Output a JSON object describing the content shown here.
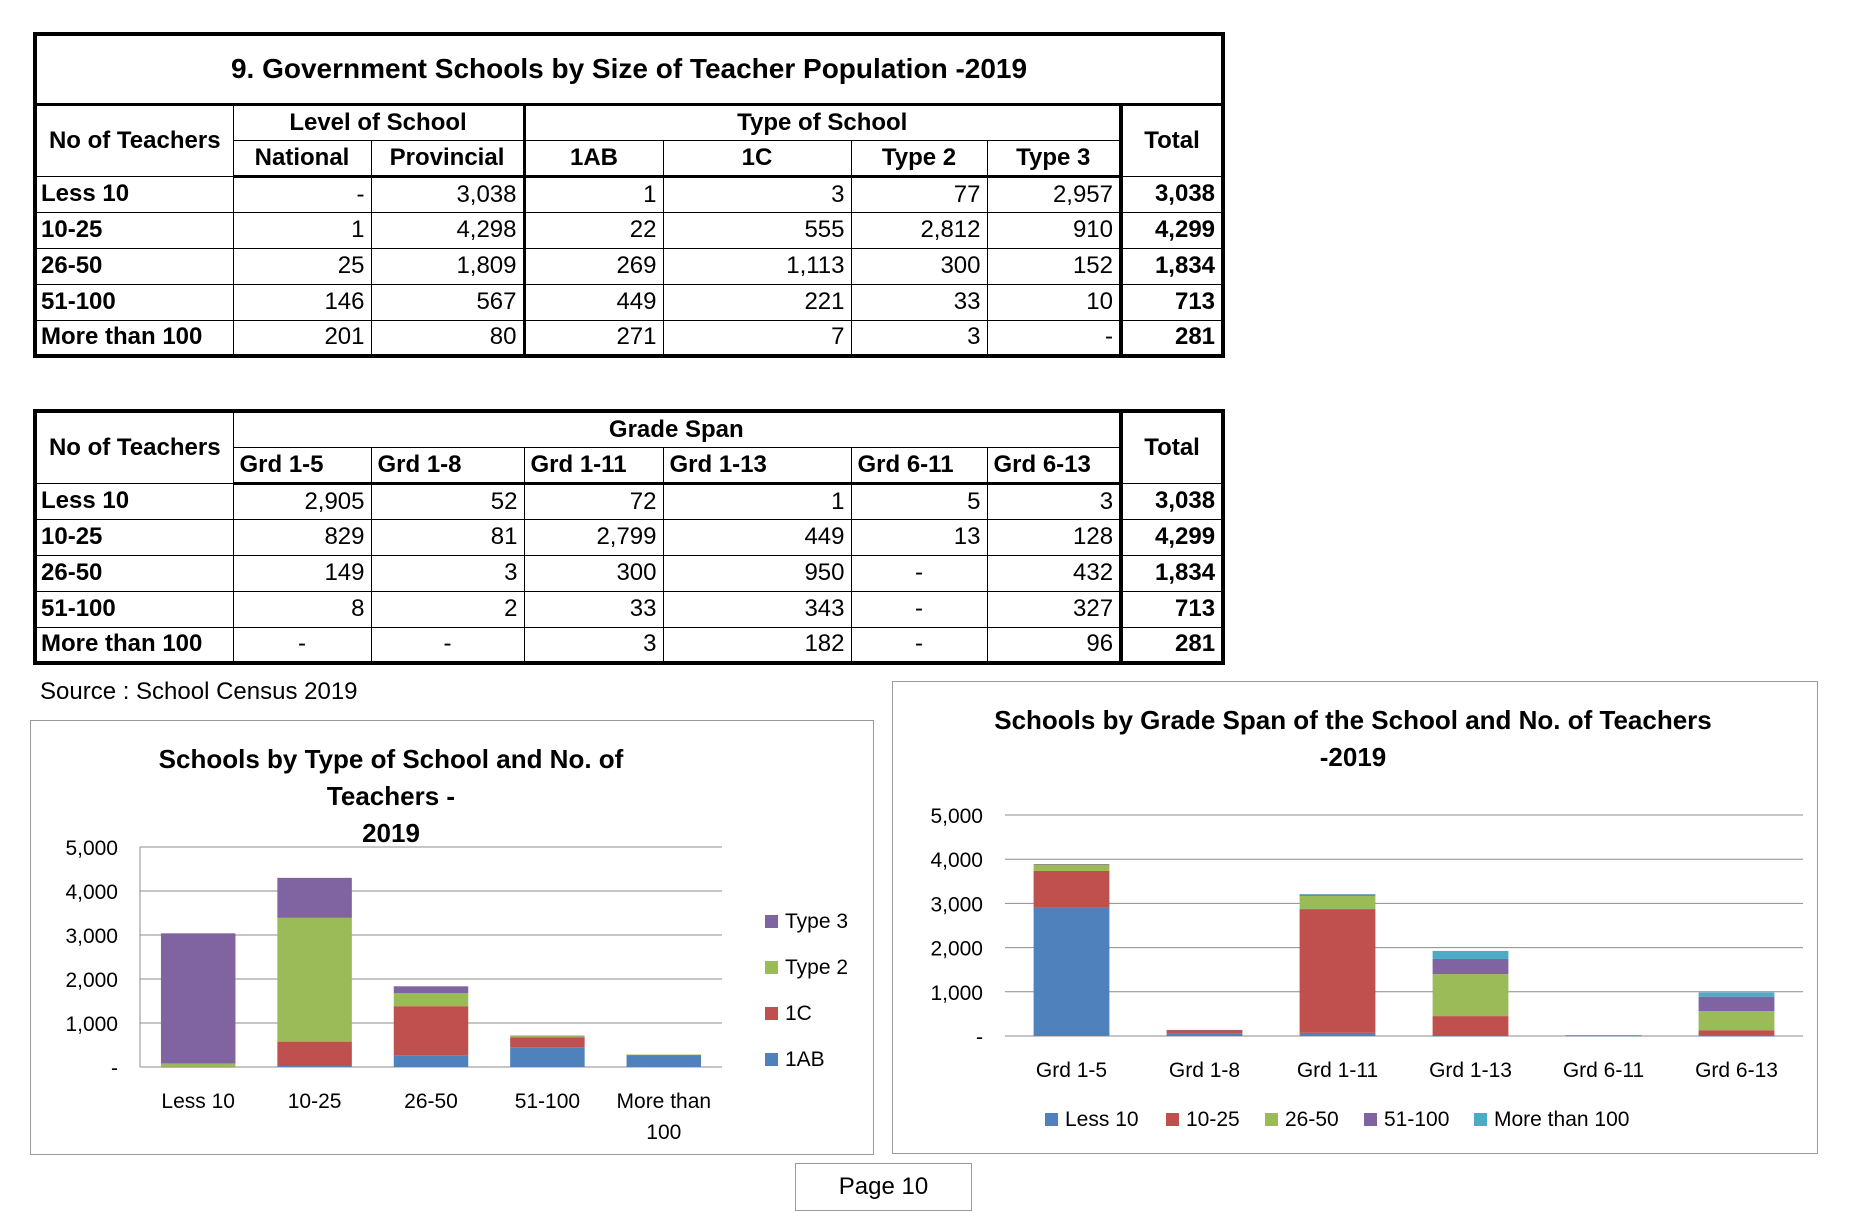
{
  "table1": {
    "title": "9. Government Schools by Size of Teacher Population -2019",
    "row_header": "No of Teachers",
    "group_level": "Level of School",
    "group_type": "Type of School",
    "total_header": "Total",
    "columns": [
      "National",
      "Provincial",
      "1AB",
      "1C",
      "Type 2",
      "Type 3"
    ],
    "rows": [
      {
        "label": "Less 10",
        "values": [
          "-",
          "3,038",
          "1",
          "3",
          "77",
          "2,957"
        ],
        "total": "3,038"
      },
      {
        "label": "10-25",
        "values": [
          "1",
          "4,298",
          "22",
          "555",
          "2,812",
          "910"
        ],
        "total": "4,299"
      },
      {
        "label": "26-50",
        "values": [
          "25",
          "1,809",
          "269",
          "1,113",
          "300",
          "152"
        ],
        "total": "1,834"
      },
      {
        "label": "51-100",
        "values": [
          "146",
          "567",
          "449",
          "221",
          "33",
          "10"
        ],
        "total": "713"
      },
      {
        "label": "More than 100",
        "values": [
          "201",
          "80",
          "271",
          "7",
          "3",
          "-"
        ],
        "total": "281"
      }
    ]
  },
  "table2": {
    "row_header": "No of Teachers",
    "group_span": "Grade Span",
    "total_header": "Total",
    "columns": [
      "Grd 1-5",
      "Grd 1-8",
      "Grd 1-11",
      "Grd 1-13",
      "Grd 6-11",
      "Grd 6-13"
    ],
    "rows": [
      {
        "label": "Less 10",
        "values": [
          "2,905",
          "52",
          "72",
          "1",
          "5",
          "3"
        ],
        "total": "3,038"
      },
      {
        "label": "10-25",
        "values": [
          "829",
          "81",
          "2,799",
          "449",
          "13",
          "128"
        ],
        "total": "4,299"
      },
      {
        "label": "26-50",
        "values": [
          "149",
          "3",
          "300",
          "950",
          "-",
          "432"
        ],
        "total": "1,834"
      },
      {
        "label": "51-100",
        "values": [
          "8",
          "2",
          "33",
          "343",
          "-",
          "327"
        ],
        "total": "713"
      },
      {
        "label": "More than 100",
        "values": [
          "-",
          "-",
          "3",
          "182",
          "-",
          "96"
        ],
        "total": "281"
      }
    ]
  },
  "source": "Source : School Census 2019",
  "page_label": "Page 10",
  "chart_data": [
    {
      "type": "bar",
      "stacked": true,
      "title_lines": [
        "Schools by Type of School and No. of Teachers -",
        "2019"
      ],
      "categories": [
        "Less 10",
        "10-25",
        "26-50",
        "51-100",
        "More than 100"
      ],
      "category_label_lines": [
        [
          "Less 10"
        ],
        [
          "10-25"
        ],
        [
          "26-50"
        ],
        [
          "51-100"
        ],
        [
          "More than",
          "100"
        ]
      ],
      "series": [
        {
          "name": "1AB",
          "color": "#4f81bd",
          "values": [
            1,
            22,
            269,
            449,
            271
          ]
        },
        {
          "name": "1C",
          "color": "#c0504d",
          "values": [
            3,
            555,
            1113,
            221,
            7
          ]
        },
        {
          "name": "Type 2",
          "color": "#9bbb59",
          "values": [
            77,
            2812,
            300,
            33,
            3
          ]
        },
        {
          "name": "Type 3",
          "color": "#8064a2",
          "values": [
            2957,
            910,
            152,
            10,
            0
          ]
        }
      ],
      "yticks": [
        "-",
        "1,000",
        "2,000",
        "3,000",
        "4,000",
        "5,000"
      ],
      "ylim": [
        0,
        5000
      ],
      "grid": true,
      "legend_position": "right"
    },
    {
      "type": "bar",
      "stacked": true,
      "title_lines": [
        "Schools by Grade Span of the School and No. of Teachers",
        "-2019"
      ],
      "categories": [
        "Grd 1-5",
        "Grd 1-8",
        "Grd 1-11",
        "Grd 1-13",
        "Grd 6-11",
        "Grd 6-13"
      ],
      "series": [
        {
          "name": "Less 10",
          "color": "#4f81bd",
          "values": [
            2905,
            52,
            72,
            1,
            5,
            3
          ]
        },
        {
          "name": "10-25",
          "color": "#c0504d",
          "values": [
            829,
            81,
            2799,
            449,
            13,
            128
          ]
        },
        {
          "name": "26-50",
          "color": "#9bbb59",
          "values": [
            149,
            3,
            300,
            950,
            0,
            432
          ]
        },
        {
          "name": "51-100",
          "color": "#8064a2",
          "values": [
            8,
            2,
            33,
            343,
            0,
            327
          ]
        },
        {
          "name": "More than 100",
          "color": "#4bacc6",
          "values": [
            0,
            0,
            3,
            182,
            0,
            96
          ]
        }
      ],
      "yticks": [
        "-",
        "1,000",
        "2,000",
        "3,000",
        "4,000",
        "5,000"
      ],
      "ylim": [
        0,
        5000
      ],
      "grid": true,
      "legend_position": "bottom"
    }
  ]
}
